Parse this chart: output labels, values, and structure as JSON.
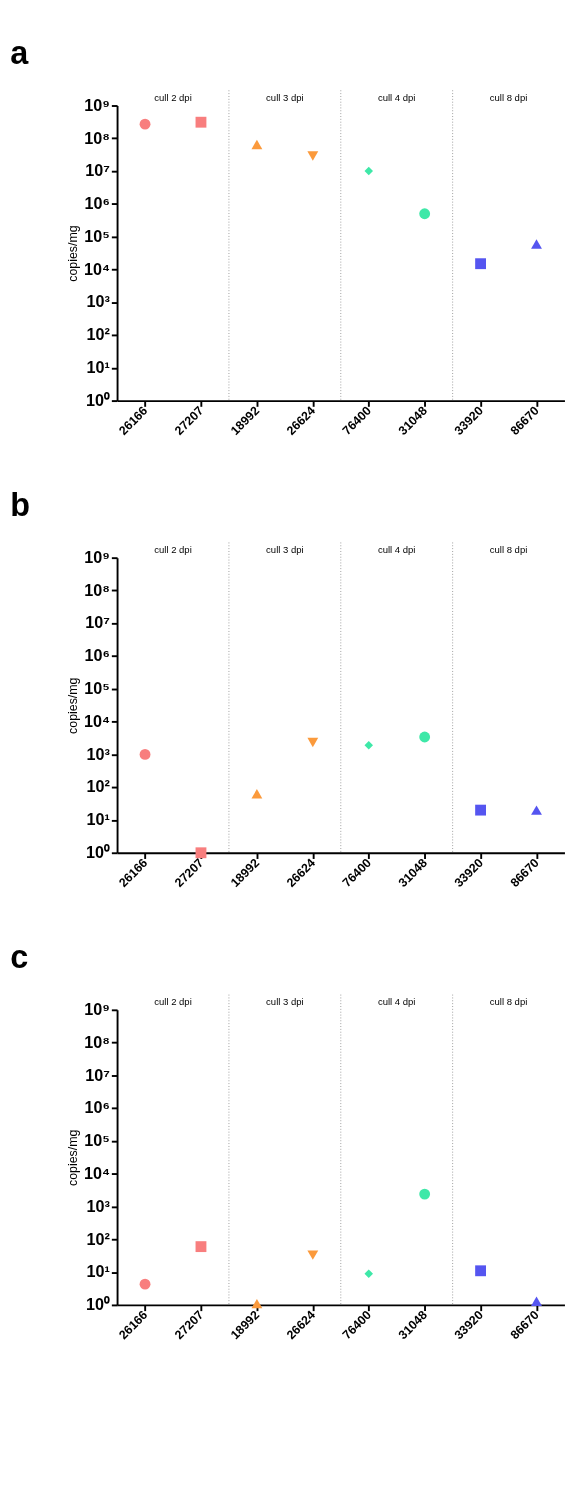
{
  "chart_data": [
    {
      "type": "scatter",
      "title": "a",
      "ylabel": "copies/mg",
      "log": "y",
      "grid": false,
      "categories": [
        "26166",
        "27207",
        "18992",
        "26624",
        "76400",
        "31048",
        "33920",
        "86670"
      ],
      "ylim": [
        1,
        1000000000
      ],
      "yticks": [
        {
          "value": 1,
          "label": "10⁰"
        },
        {
          "value": 10,
          "label": "10¹"
        },
        {
          "value": 100,
          "label": "10²"
        },
        {
          "value": 1000,
          "label": "10³"
        },
        {
          "value": 10000,
          "label": "10⁴"
        },
        {
          "value": 100000,
          "label": "10⁵"
        },
        {
          "value": 1000000,
          "label": "10⁶"
        },
        {
          "value": 10000000,
          "label": "10⁷"
        },
        {
          "value": 100000000,
          "label": "10⁸"
        },
        {
          "value": 1000000000,
          "label": "10⁹"
        }
      ],
      "annotations": [
        "cull 2 dpi",
        "cull 3 dpi",
        "cull 4 dpi",
        "cull 8 dpi"
      ],
      "series": [
        {
          "color": "#f87e7e",
          "marker": "circle",
          "values": [
            270000000,
            null,
            null,
            null,
            null,
            null,
            null,
            null
          ]
        },
        {
          "color": "#f87e7e",
          "marker": "square",
          "values": [
            null,
            310000000,
            null,
            null,
            null,
            null,
            null,
            null
          ]
        },
        {
          "color": "#fb9a3c",
          "marker": "triangle",
          "values": [
            null,
            null,
            65000000,
            null,
            null,
            null,
            null,
            null
          ]
        },
        {
          "color": "#fb9a3c",
          "marker": "triangle-down",
          "values": [
            null,
            null,
            null,
            29000000,
            null,
            null,
            null,
            null
          ]
        },
        {
          "color": "#3ee8a8",
          "marker": "diamond",
          "values": [
            null,
            null,
            null,
            null,
            10000000,
            null,
            null,
            null
          ]
        },
        {
          "color": "#3ee8a8",
          "marker": "circle",
          "values": [
            null,
            null,
            null,
            null,
            null,
            500000,
            null,
            null
          ]
        },
        {
          "color": "#5555f0",
          "marker": "square",
          "values": [
            null,
            null,
            null,
            null,
            null,
            null,
            15000,
            null
          ]
        },
        {
          "color": "#5555f0",
          "marker": "triangle",
          "values": [
            null,
            null,
            null,
            null,
            null,
            null,
            null,
            60000
          ]
        }
      ]
    },
    {
      "type": "scatter",
      "title": "b",
      "ylabel": "copies/mg",
      "log": "y",
      "grid": false,
      "categories": [
        "26166",
        "27207",
        "18992",
        "26624",
        "76400",
        "31048",
        "33920",
        "86670"
      ],
      "ylim": [
        1,
        1000000000
      ],
      "yticks": [
        {
          "value": 1,
          "label": "10⁰"
        },
        {
          "value": 10,
          "label": "10¹"
        },
        {
          "value": 100,
          "label": "10²"
        },
        {
          "value": 1000,
          "label": "10³"
        },
        {
          "value": 10000,
          "label": "10⁴"
        },
        {
          "value": 100000,
          "label": "10⁵"
        },
        {
          "value": 1000000,
          "label": "10⁶"
        },
        {
          "value": 10000000,
          "label": "10⁷"
        },
        {
          "value": 100000000,
          "label": "10⁸"
        },
        {
          "value": 1000000000,
          "label": "10⁹"
        }
      ],
      "annotations": [
        "cull 2 dpi",
        "cull 3 dpi",
        "cull 4 dpi",
        "cull 8 dpi"
      ],
      "series": [
        {
          "color": "#f87e7e",
          "marker": "circle",
          "values": [
            1000,
            null,
            null,
            null,
            null,
            null,
            null,
            null
          ]
        },
        {
          "color": "#f87e7e",
          "marker": "square",
          "values": [
            null,
            1,
            null,
            null,
            null,
            null,
            null,
            null
          ]
        },
        {
          "color": "#fb9a3c",
          "marker": "triangle",
          "values": [
            null,
            null,
            63,
            null,
            null,
            null,
            null,
            null
          ]
        },
        {
          "color": "#fb9a3c",
          "marker": "triangle-down",
          "values": [
            null,
            null,
            null,
            2300,
            null,
            null,
            null,
            null
          ]
        },
        {
          "color": "#3ee8a8",
          "marker": "diamond",
          "values": [
            null,
            null,
            null,
            null,
            1900,
            null,
            null,
            null
          ]
        },
        {
          "color": "#3ee8a8",
          "marker": "circle",
          "values": [
            null,
            null,
            null,
            null,
            null,
            3400,
            null,
            null
          ]
        },
        {
          "color": "#5555f0",
          "marker": "square",
          "values": [
            null,
            null,
            null,
            null,
            null,
            null,
            20,
            null
          ]
        },
        {
          "color": "#5555f0",
          "marker": "triangle",
          "values": [
            null,
            null,
            null,
            null,
            null,
            null,
            null,
            20
          ]
        }
      ]
    },
    {
      "type": "scatter",
      "title": "c",
      "ylabel": "copies/mg",
      "log": "y",
      "grid": false,
      "categories": [
        "26166",
        "27207",
        "18992",
        "26624",
        "76400",
        "31048",
        "33920",
        "86670"
      ],
      "ylim": [
        1,
        1000000000
      ],
      "yticks": [
        {
          "value": 1,
          "label": "10⁰"
        },
        {
          "value": 10,
          "label": "10¹"
        },
        {
          "value": 100,
          "label": "10²"
        },
        {
          "value": 1000,
          "label": "10³"
        },
        {
          "value": 10000,
          "label": "10⁴"
        },
        {
          "value": 100000,
          "label": "10⁵"
        },
        {
          "value": 1000000,
          "label": "10⁶"
        },
        {
          "value": 10000000,
          "label": "10⁷"
        },
        {
          "value": 100000000,
          "label": "10⁸"
        },
        {
          "value": 1000000000,
          "label": "10⁹"
        }
      ],
      "annotations": [
        "cull 2 dpi",
        "cull 3 dpi",
        "cull 4 dpi",
        "cull 8 dpi"
      ],
      "series": [
        {
          "color": "#f87e7e",
          "marker": "circle",
          "values": [
            4.3,
            null,
            null,
            null,
            null,
            null,
            null,
            null
          ]
        },
        {
          "color": "#f87e7e",
          "marker": "square",
          "values": [
            null,
            60,
            null,
            null,
            null,
            null,
            null,
            null
          ]
        },
        {
          "color": "#fb9a3c",
          "marker": "triangle",
          "values": [
            null,
            null,
            1.1,
            null,
            null,
            null,
            null,
            null
          ]
        },
        {
          "color": "#fb9a3c",
          "marker": "triangle-down",
          "values": [
            null,
            null,
            null,
            33,
            null,
            null,
            null,
            null
          ]
        },
        {
          "color": "#3ee8a8",
          "marker": "diamond",
          "values": [
            null,
            null,
            null,
            null,
            9,
            null,
            null,
            null
          ]
        },
        {
          "color": "#3ee8a8",
          "marker": "circle",
          "values": [
            null,
            null,
            null,
            null,
            null,
            2400,
            null,
            null
          ]
        },
        {
          "color": "#5555f0",
          "marker": "square",
          "values": [
            null,
            null,
            null,
            null,
            null,
            null,
            11,
            null
          ]
        },
        {
          "color": "#5555f0",
          "marker": "triangle",
          "values": [
            null,
            null,
            null,
            null,
            null,
            null,
            null,
            1.3
          ]
        }
      ]
    }
  ]
}
